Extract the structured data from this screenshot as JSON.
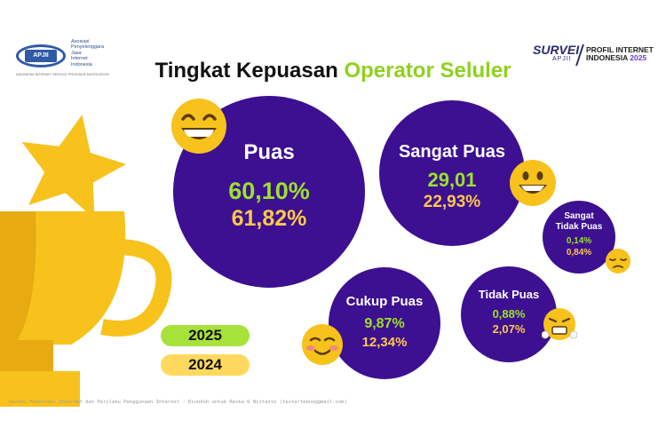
{
  "header": {
    "logo_badge": "APJII",
    "logo_lines": [
      "Asosiasi",
      "Penyelenggara",
      "Jasa",
      "Internet",
      "Indonesia"
    ],
    "logo_sub": "INDONESIA INTERNET SERVICE PROVIDER ASSOCIATION",
    "survey_word": "SURVEI",
    "survey_org": "APJII",
    "profile_line1": "PROFIL INTERNET",
    "profile_line2": "INDONESIA",
    "profile_year": "2025"
  },
  "title": {
    "main": "Tingkat Kepuasan",
    "accent": "Operator Seluler"
  },
  "chart_data": {
    "type": "bubble",
    "series_years": [
      "2025",
      "2024"
    ],
    "categories": [
      "Puas",
      "Sangat Puas",
      "Cukup Puas",
      "Tidak Puas",
      "Sangat Tidak Puas"
    ],
    "series": [
      {
        "name": "2025",
        "values": [
          "60,10%",
          "29,01",
          "9,87%",
          "0,88%",
          "0,14%"
        ]
      },
      {
        "name": "2024",
        "values": [
          "61,82%",
          "22,93%",
          "12,34%",
          "2,07%",
          "0,84%"
        ]
      }
    ]
  },
  "bubbles": [
    {
      "label": "Puas",
      "v2025": "60,10%",
      "v2024": "61,82%",
      "emoji": "grinning-face-icon"
    },
    {
      "label": "Sangat Puas",
      "v2025": "29,01",
      "v2024": "22,93%",
      "emoji": "smiling-face-icon"
    },
    {
      "label": "Cukup Puas",
      "v2025": "9,87%",
      "v2024": "12,34%",
      "emoji": "blushing-face-icon"
    },
    {
      "label": "Tidak Puas",
      "v2025": "0,88%",
      "v2024": "2,07%",
      "emoji": "steaming-face-icon"
    },
    {
      "label_line1": "Sangat",
      "label_line2": "Tidak Puas",
      "v2025": "0,14%",
      "v2024": "0,84%",
      "emoji": "pensive-face-icon"
    }
  ],
  "legend": {
    "year_2025": "2025",
    "year_2024": "2024",
    "color_2025": "#9be22a",
    "color_2024": "#ffd95e"
  },
  "colors": {
    "circle": "#3d0f91",
    "accent_green": "#8fd11c",
    "accent_yellow": "#ffc94a",
    "trophy": "#f7c21b"
  },
  "footer": "Survei Penetrasi Internet dan Perilaku Penggunaan Internet - Diunduh untuk Reska K Nistanto (testertekno@gmail.com)"
}
